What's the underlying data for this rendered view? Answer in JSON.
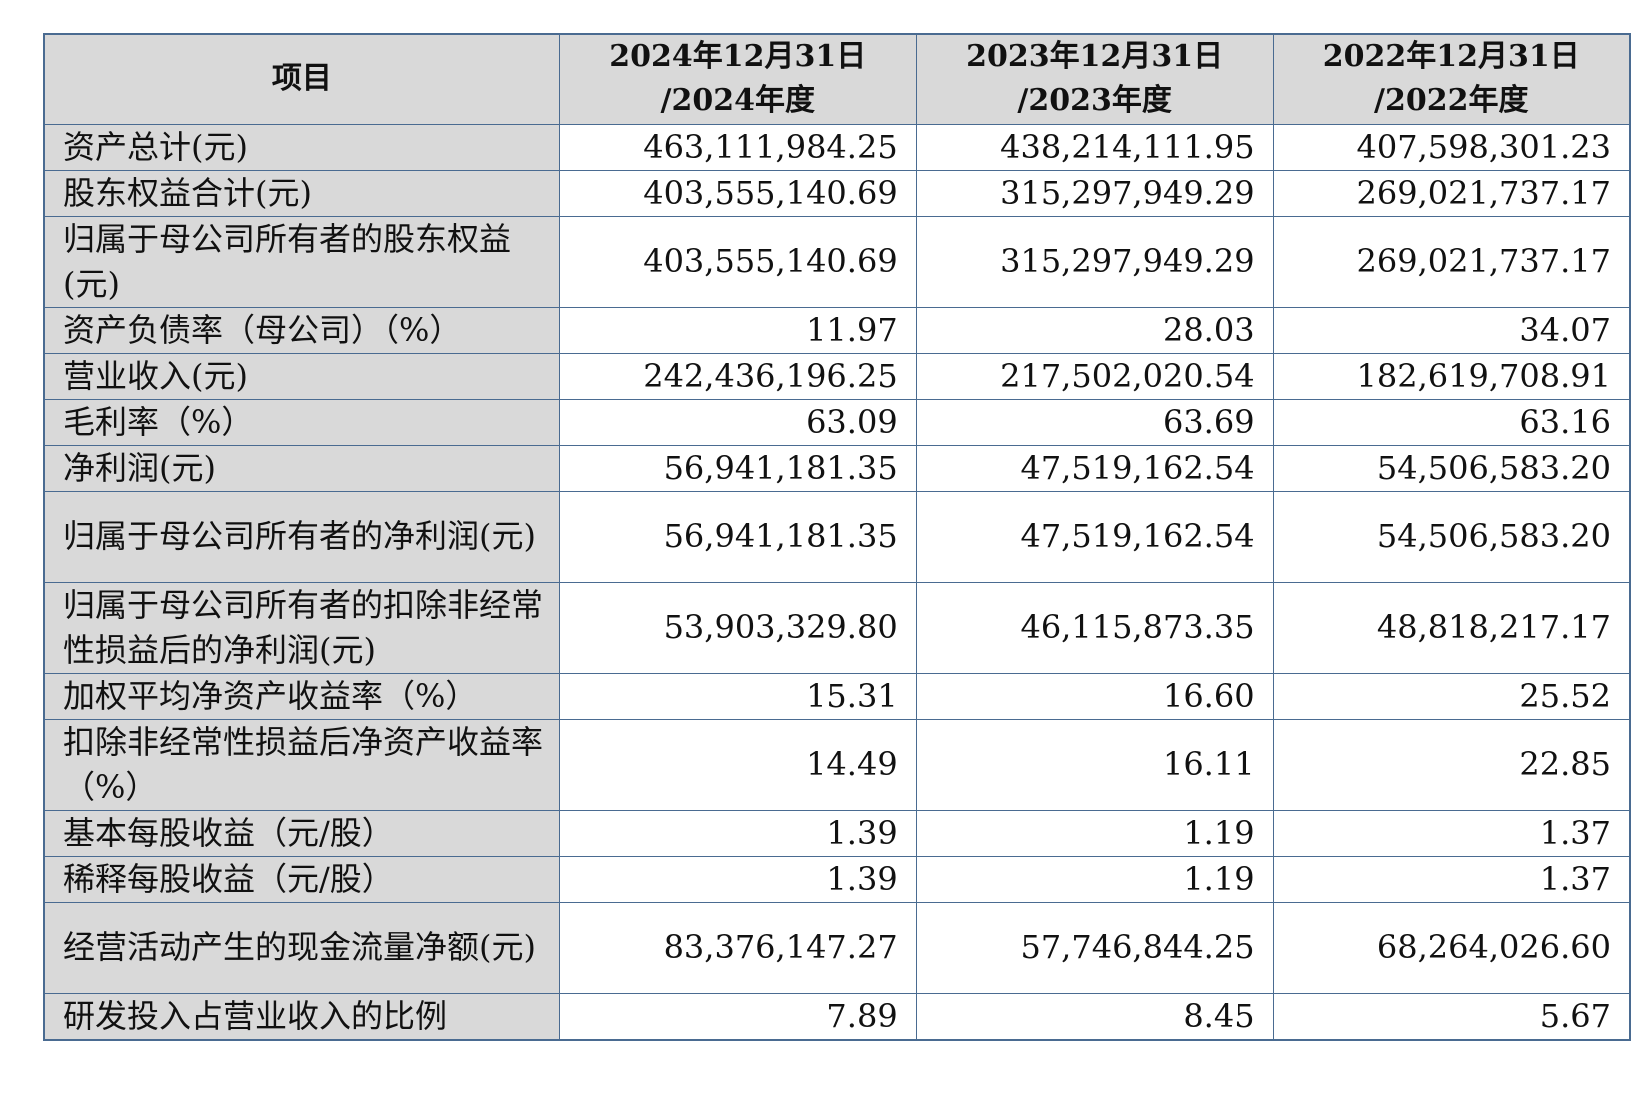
{
  "table": {
    "header": {
      "item": "项目",
      "columns": [
        [
          "2024年12月31日",
          "/2024年度"
        ],
        [
          "2023年12月31日",
          "/2023年度"
        ],
        [
          "2022年12月31日",
          "/2022年度"
        ]
      ]
    },
    "rows": [
      {
        "label": "资产总计(元)",
        "values": [
          "463,111,984.25",
          "438,214,111.95",
          "407,598,301.23"
        ]
      },
      {
        "label": "股东权益合计(元)",
        "values": [
          "403,555,140.69",
          "315,297,949.29",
          "269,021,737.17"
        ]
      },
      {
        "label": "归属于母公司所有者的股东权益(元)",
        "values": [
          "403,555,140.69",
          "315,297,949.29",
          "269,021,737.17"
        ]
      },
      {
        "label": "资产负债率（母公司）（%）",
        "values": [
          "11.97",
          "28.03",
          "34.07"
        ]
      },
      {
        "label": "营业收入(元)",
        "values": [
          "242,436,196.25",
          "217,502,020.54",
          "182,619,708.91"
        ]
      },
      {
        "label": "毛利率（%）",
        "values": [
          "63.09",
          "63.69",
          "63.16"
        ]
      },
      {
        "label": "净利润(元)",
        "values": [
          "56,941,181.35",
          "47,519,162.54",
          "54,506,583.20"
        ]
      },
      {
        "label": "归属于母公司所有者的净利润(元)",
        "values": [
          "56,941,181.35",
          "47,519,162.54",
          "54,506,583.20"
        ]
      },
      {
        "label": "归属于母公司所有者的扣除非经常性损益后的净利润(元)",
        "values": [
          "53,903,329.80",
          "46,115,873.35",
          "48,818,217.17"
        ]
      },
      {
        "label": "加权平均净资产收益率（%）",
        "values": [
          "15.31",
          "16.60",
          "25.52"
        ]
      },
      {
        "label": "扣除非经常性损益后净资产收益率（%）",
        "values": [
          "14.49",
          "16.11",
          "22.85"
        ]
      },
      {
        "label": "基本每股收益（元/股）",
        "values": [
          "1.39",
          "1.19",
          "1.37"
        ]
      },
      {
        "label": "稀释每股收益（元/股）",
        "values": [
          "1.39",
          "1.19",
          "1.37"
        ]
      },
      {
        "label": "经营活动产生的现金流量净额(元)",
        "values": [
          "83,376,147.27",
          "57,746,844.25",
          "68,264,026.60"
        ]
      },
      {
        "label": "研发投入占营业收入的比例",
        "values": [
          "7.89",
          "8.45",
          "5.67"
        ]
      }
    ]
  }
}
